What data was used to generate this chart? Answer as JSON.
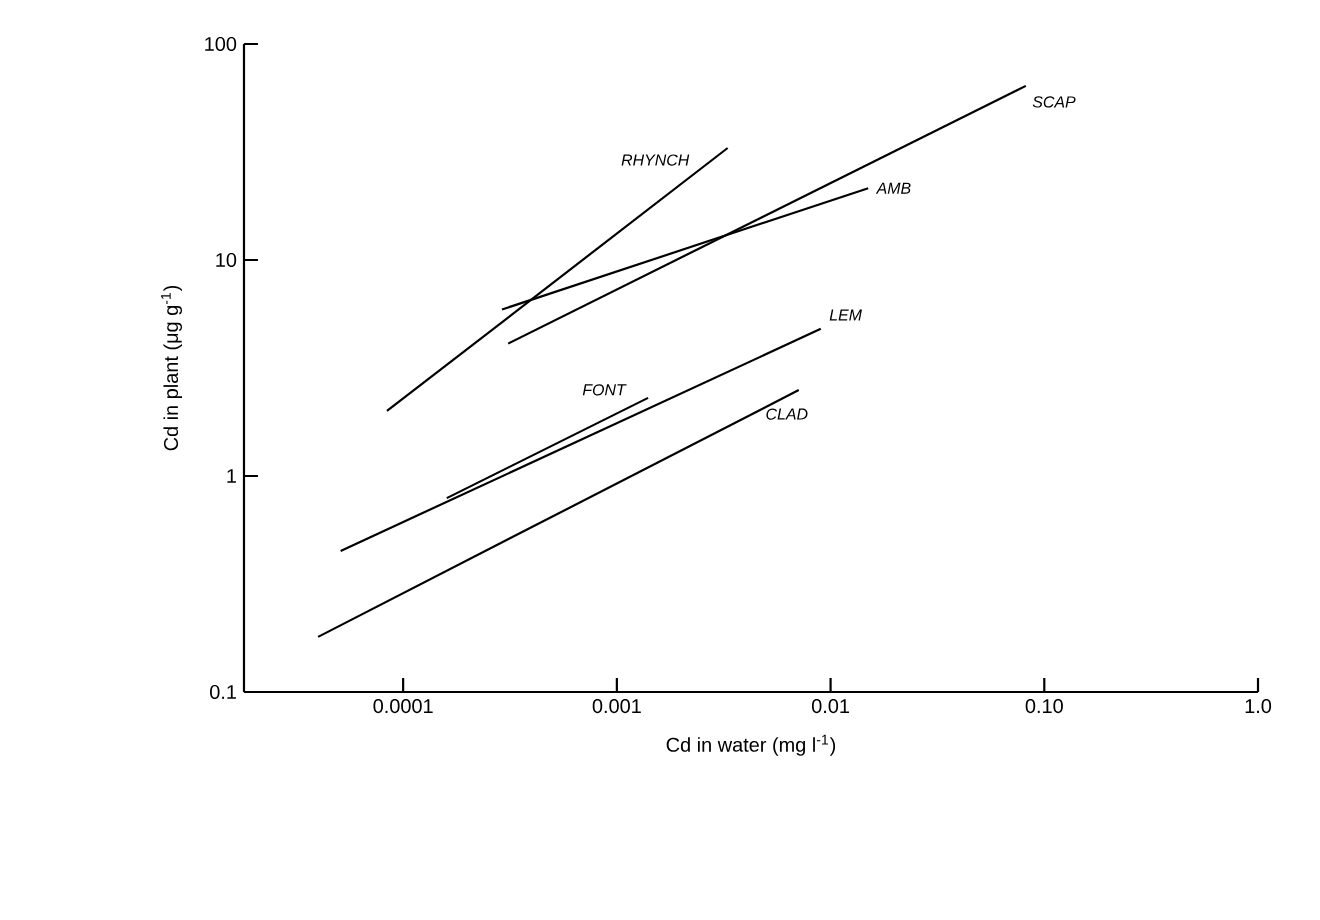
{
  "chart_data": {
    "type": "line",
    "xlabel": "Cd in water  (mg l$^{-1}$)",
    "ylabel": "Cd in plant  (μg g$^{-1}$)",
    "log": "xy",
    "xlim": [
      1.8e-05,
      1
    ],
    "ylim": [
      0.1,
      100
    ],
    "xticks": [
      0.0001,
      0.001,
      0.01,
      {
        "value": 0.1,
        "label": "0.10"
      },
      {
        "value": 1,
        "label": "1.0"
      }
    ],
    "yticks": [
      0.1,
      1,
      10,
      100
    ],
    "series": [
      {
        "name": "RHYNCH",
        "color": "#000000",
        "x": [
          8.4e-05,
          0.0033
        ],
        "values": [
          2.0,
          33
        ]
      },
      {
        "name": "SCAP",
        "color": "#000000",
        "x": [
          0.00031,
          0.082
        ],
        "values": [
          4.1,
          64
        ]
      },
      {
        "name": "AMB",
        "color": "#000000",
        "x": [
          0.00029,
          0.015
        ],
        "values": [
          5.9,
          21.5
        ]
      },
      {
        "name": "LEM",
        "color": "#000000",
        "x": [
          5.1e-05,
          0.009
        ],
        "values": [
          0.45,
          4.8
        ]
      },
      {
        "name": "FONT",
        "color": "#000000",
        "x": [
          0.00016,
          0.0014
        ],
        "values": [
          0.79,
          2.3
        ]
      },
      {
        "name": "CLAD",
        "color": "#000000",
        "x": [
          4e-05,
          0.0071
        ],
        "values": [
          0.18,
          2.5
        ]
      }
    ]
  }
}
